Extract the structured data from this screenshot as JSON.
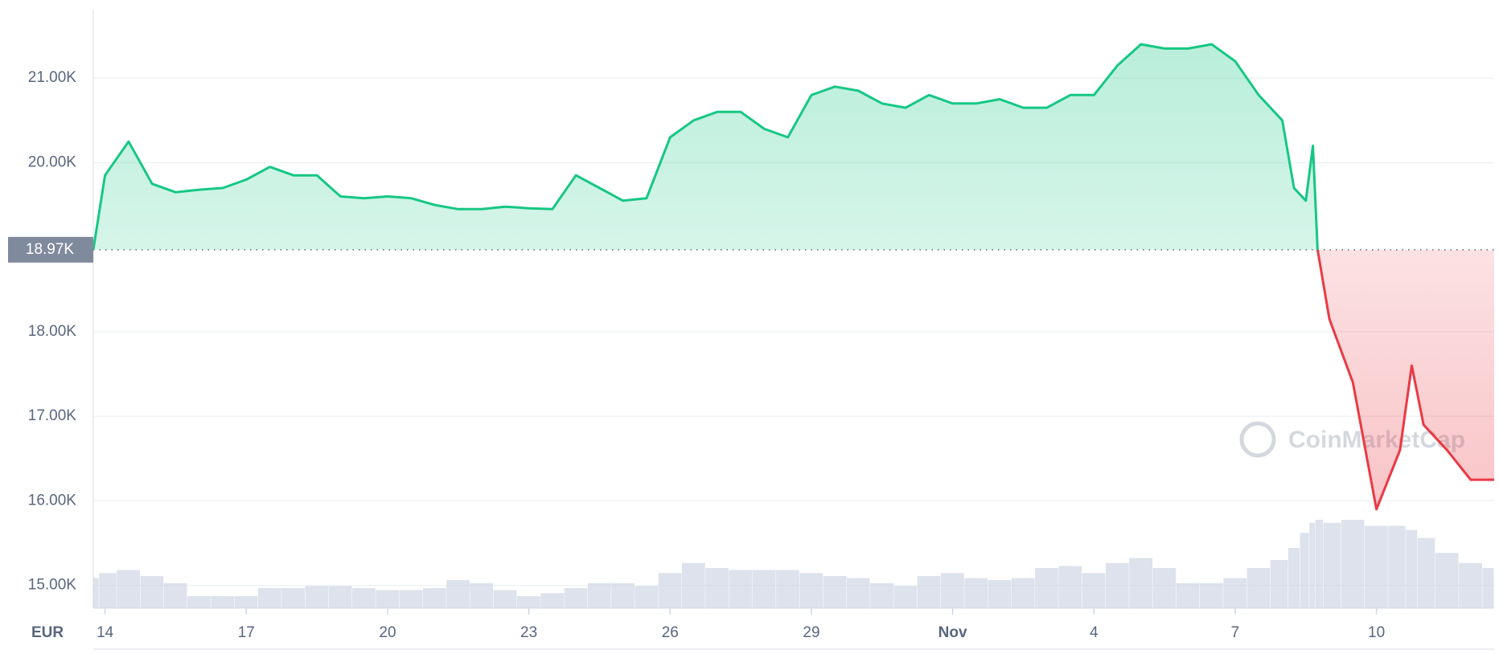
{
  "chart_data": {
    "type": "line",
    "currency": "EUR",
    "watermark": "CoinMarketCap",
    "x": [
      -0.25,
      0,
      0.5,
      1,
      1.5,
      2,
      2.5,
      3,
      3.5,
      4,
      4.5,
      5,
      5.5,
      6,
      6.5,
      7,
      7.5,
      8,
      8.5,
      9,
      9.5,
      10,
      10.5,
      11,
      11.5,
      12,
      12.5,
      13,
      13.5,
      14,
      14.5,
      15,
      15.5,
      16,
      16.5,
      17,
      17.5,
      18,
      18.5,
      19,
      19.5,
      20,
      20.5,
      21,
      21.5,
      22,
      22.5,
      23,
      23.5,
      24,
      24.5,
      25,
      25.25,
      25.5,
      25.65,
      25.75,
      26,
      26.5,
      27,
      27.5,
      27.75,
      28,
      28.5,
      29,
      29.5
    ],
    "series": [
      {
        "name": "Price",
        "color": "#16c784",
        "color_down": "#ea3943",
        "values": [
          18970,
          19850,
          20250,
          19750,
          19650,
          19680,
          19700,
          19800,
          19950,
          19850,
          19850,
          19600,
          19580,
          19600,
          19580,
          19500,
          19450,
          19450,
          19480,
          19460,
          19450,
          19850,
          19700,
          19550,
          19580,
          20300,
          20500,
          20600,
          20600,
          20400,
          20300,
          20800,
          20900,
          20850,
          20700,
          20650,
          20800,
          20700,
          20700,
          20750,
          20650,
          20650,
          20800,
          20800,
          21150,
          21400,
          21350,
          21350,
          21400,
          21200,
          20800,
          20500,
          19700,
          19550,
          20200,
          18970,
          18150,
          17400,
          15900,
          16600,
          17600,
          16900,
          16600,
          16250,
          16250
        ]
      },
      {
        "name": "Volume",
        "axis": "y2",
        "color": "#cfd6e4",
        "values": [
          30,
          35,
          38,
          32,
          25,
          12,
          12,
          12,
          20,
          20,
          22,
          22,
          20,
          18,
          18,
          20,
          28,
          25,
          18,
          12,
          15,
          20,
          25,
          25,
          22,
          35,
          45,
          40,
          38,
          38,
          38,
          35,
          32,
          30,
          25,
          22,
          32,
          35,
          30,
          28,
          30,
          40,
          42,
          35,
          45,
          50,
          40,
          25,
          25,
          30,
          40,
          48,
          60,
          75,
          85,
          88,
          85,
          88,
          82,
          82,
          78,
          70,
          55,
          45,
          40
        ]
      }
    ],
    "xlim": [
      -0.25,
      29.5
    ],
    "xticks": [
      {
        "value": 0,
        "label": "14"
      },
      {
        "value": 3,
        "label": "17"
      },
      {
        "value": 6,
        "label": "20"
      },
      {
        "value": 9,
        "label": "23"
      },
      {
        "value": 12,
        "label": "26"
      },
      {
        "value": 15,
        "label": "29"
      },
      {
        "value": 18,
        "label": "Nov"
      },
      {
        "value": 21,
        "label": "4"
      },
      {
        "value": 24,
        "label": "7"
      },
      {
        "value": 27,
        "label": "10"
      }
    ],
    "ylim": [
      14730,
      21810
    ],
    "yticks": [
      {
        "value": 15000,
        "label": "15.00K"
      },
      {
        "value": 16000,
        "label": "16.00K"
      },
      {
        "value": 17000,
        "label": "17.00K"
      },
      {
        "value": 18000,
        "label": "18.00K"
      },
      {
        "value": 20000,
        "label": "20.00K"
      },
      {
        "value": 21000,
        "label": "21.00K"
      }
    ],
    "y2lim": [
      0,
      100
    ],
    "baseline": {
      "value": 18970,
      "label": "18.97K"
    },
    "grid": true
  }
}
